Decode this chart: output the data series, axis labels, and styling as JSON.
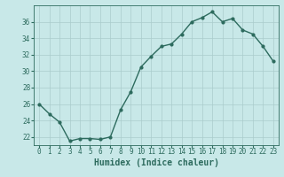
{
  "xlabel": "Humidex (Indice chaleur)",
  "ylabel": "",
  "x_values": [
    0,
    1,
    2,
    3,
    4,
    5,
    6,
    7,
    8,
    9,
    10,
    11,
    12,
    13,
    14,
    15,
    16,
    17,
    18,
    19,
    20,
    21,
    22,
    23
  ],
  "y_values": [
    26.0,
    24.8,
    23.8,
    21.5,
    21.8,
    21.8,
    21.7,
    22.0,
    25.3,
    27.5,
    30.5,
    31.8,
    33.0,
    33.3,
    34.5,
    36.0,
    36.5,
    37.2,
    36.0,
    36.4,
    35.0,
    34.5,
    33.0,
    31.2
  ],
  "line_color": "#2d6b5e",
  "marker": "o",
  "marker_size": 2.0,
  "bg_color": "#c8e8e8",
  "grid_color": "#aacccc",
  "axis_color": "#2d6b5e",
  "tick_color": "#2d6b5e",
  "label_color": "#2d6b5e",
  "xlim": [
    -0.5,
    23.5
  ],
  "ylim": [
    21,
    38
  ],
  "yticks": [
    22,
    24,
    26,
    28,
    30,
    32,
    34,
    36
  ],
  "xticks": [
    0,
    1,
    2,
    3,
    4,
    5,
    6,
    7,
    8,
    9,
    10,
    11,
    12,
    13,
    14,
    15,
    16,
    17,
    18,
    19,
    20,
    21,
    22,
    23
  ],
  "xlabel_fontsize": 7,
  "tick_fontsize": 5.5,
  "line_width": 1.0
}
